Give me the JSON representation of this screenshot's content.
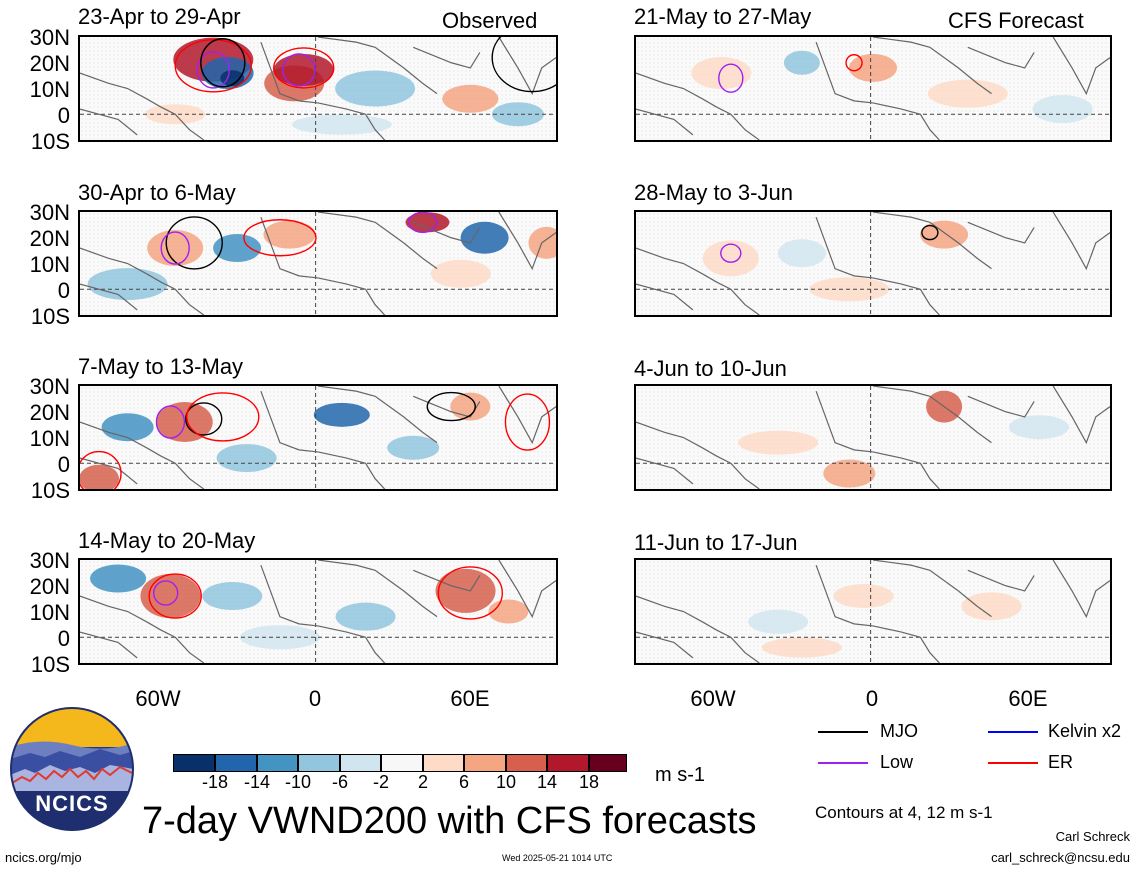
{
  "panels_left": [
    {
      "title": "23-Apr to 29-Apr",
      "tag": "Observed"
    },
    {
      "title": "30-Apr to 6-May",
      "tag": ""
    },
    {
      "title": "7-May to 13-May",
      "tag": ""
    },
    {
      "title": "14-May to 20-May",
      "tag": ""
    }
  ],
  "panels_right": [
    {
      "title": "21-May to 27-May",
      "tag": "CFS Forecast"
    },
    {
      "title": "28-May to 3-Jun",
      "tag": ""
    },
    {
      "title": "4-Jun to 10-Jun",
      "tag": ""
    },
    {
      "title": "11-Jun to 17-Jun",
      "tag": ""
    }
  ],
  "lat_labels": [
    "30N",
    "20N",
    "10N",
    "0",
    "10S"
  ],
  "lon_labels": [
    "60W",
    "0",
    "60E"
  ],
  "colorbar": {
    "colors": [
      "#08306b",
      "#2166ac",
      "#4393c3",
      "#92c5de",
      "#d1e5f0",
      "#f7f7f7",
      "#fddbc7",
      "#f4a582",
      "#d6604d",
      "#b2182b",
      "#67001f"
    ],
    "labels": [
      "-18",
      "-14",
      "-10",
      "-6",
      "-2",
      "2",
      "6",
      "10",
      "14",
      "18"
    ],
    "units": "m s-1"
  },
  "legend": [
    {
      "label": "MJO",
      "color": "#000000"
    },
    {
      "label": "Kelvin x2",
      "color": "#0000ff"
    },
    {
      "label": "Low",
      "color": "#a020f0"
    },
    {
      "label": "ER",
      "color": "#ff0000"
    }
  ],
  "contours_note": "Contours at 4, 12 m s-1",
  "main_title": "7-day VWND200 with CFS forecasts",
  "logo_text": "NCICS",
  "footer": {
    "url": "ncics.org/mjo",
    "timestamp": "Wed 2025-05-21 1014 UTC",
    "author": "Carl Schreck",
    "email": "carl_schreck@ncsu.edu"
  }
}
